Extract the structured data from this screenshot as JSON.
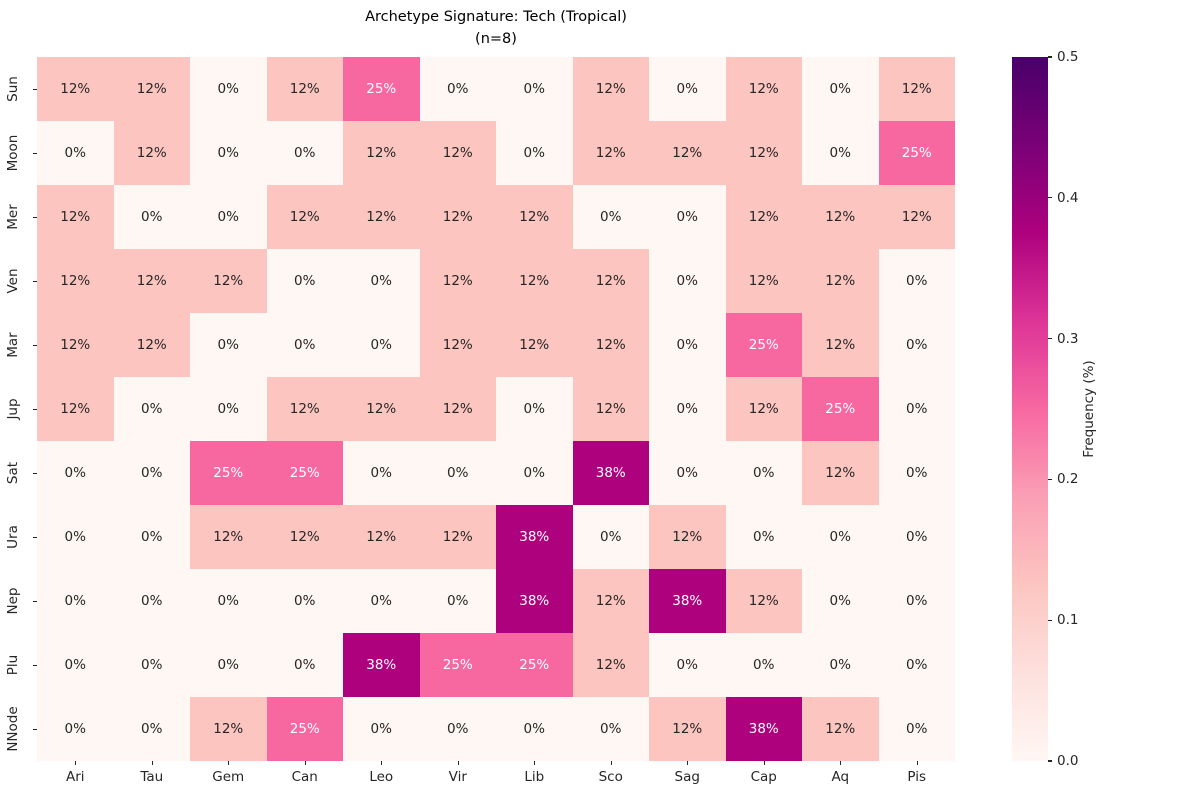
{
  "figure": {
    "title": "Archetype Signature: Tech (Tropical)",
    "subtitle": "(n=8)"
  },
  "chart_data": {
    "type": "heatmap",
    "title": "Archetype Signature: Tech (Tropical)",
    "subtitle": "(n=8)",
    "x_categories": [
      "Ari",
      "Tau",
      "Gem",
      "Can",
      "Leo",
      "Vir",
      "Lib",
      "Sco",
      "Sag",
      "Cap",
      "Aq",
      "Pis"
    ],
    "y_categories": [
      "Sun",
      "Moon",
      "Mer",
      "Ven",
      "Mar",
      "Jup",
      "Sat",
      "Ura",
      "Nep",
      "Plu",
      "NNode"
    ],
    "values": [
      [
        0.125,
        0.125,
        0,
        0.125,
        0.25,
        0,
        0,
        0.125,
        0,
        0.125,
        0,
        0.125
      ],
      [
        0,
        0.125,
        0,
        0,
        0.125,
        0.125,
        0,
        0.125,
        0.125,
        0.125,
        0,
        0.25
      ],
      [
        0.125,
        0,
        0,
        0.125,
        0.125,
        0.125,
        0.125,
        0,
        0,
        0.125,
        0.125,
        0.125
      ],
      [
        0.125,
        0.125,
        0.125,
        0,
        0,
        0.125,
        0.125,
        0.125,
        0,
        0.125,
        0.125,
        0
      ],
      [
        0.125,
        0.125,
        0,
        0,
        0,
        0.125,
        0.125,
        0.125,
        0,
        0.25,
        0.125,
        0
      ],
      [
        0.125,
        0,
        0,
        0.125,
        0.125,
        0.125,
        0,
        0.125,
        0,
        0.125,
        0.25,
        0
      ],
      [
        0,
        0,
        0.25,
        0.25,
        0,
        0,
        0,
        0.375,
        0,
        0,
        0.125,
        0
      ],
      [
        0,
        0,
        0.125,
        0.125,
        0.125,
        0.125,
        0.375,
        0,
        0.125,
        0,
        0,
        0
      ],
      [
        0,
        0,
        0,
        0,
        0,
        0,
        0.375,
        0.125,
        0.375,
        0.125,
        0,
        0
      ],
      [
        0,
        0,
        0,
        0,
        0.375,
        0.25,
        0.25,
        0.125,
        0,
        0,
        0,
        0
      ],
      [
        0,
        0,
        0.125,
        0.25,
        0,
        0,
        0,
        0,
        0.125,
        0.375,
        0.125,
        0
      ]
    ],
    "cell_labels": [
      [
        "12%",
        "12%",
        "0%",
        "12%",
        "25%",
        "0%",
        "0%",
        "12%",
        "0%",
        "12%",
        "0%",
        "12%"
      ],
      [
        "0%",
        "12%",
        "0%",
        "0%",
        "12%",
        "12%",
        "0%",
        "12%",
        "12%",
        "12%",
        "0%",
        "25%"
      ],
      [
        "12%",
        "0%",
        "0%",
        "12%",
        "12%",
        "12%",
        "12%",
        "0%",
        "0%",
        "12%",
        "12%",
        "12%"
      ],
      [
        "12%",
        "12%",
        "12%",
        "0%",
        "0%",
        "12%",
        "12%",
        "12%",
        "0%",
        "12%",
        "12%",
        "0%"
      ],
      [
        "12%",
        "12%",
        "0%",
        "0%",
        "0%",
        "12%",
        "12%",
        "12%",
        "0%",
        "25%",
        "12%",
        "0%"
      ],
      [
        "12%",
        "0%",
        "0%",
        "12%",
        "12%",
        "12%",
        "0%",
        "12%",
        "0%",
        "12%",
        "25%",
        "0%"
      ],
      [
        "0%",
        "0%",
        "25%",
        "25%",
        "0%",
        "0%",
        "0%",
        "38%",
        "0%",
        "0%",
        "12%",
        "0%"
      ],
      [
        "0%",
        "0%",
        "12%",
        "12%",
        "12%",
        "12%",
        "38%",
        "0%",
        "12%",
        "0%",
        "0%",
        "0%"
      ],
      [
        "0%",
        "0%",
        "0%",
        "0%",
        "0%",
        "0%",
        "38%",
        "12%",
        "38%",
        "12%",
        "0%",
        "0%"
      ],
      [
        "0%",
        "0%",
        "0%",
        "0%",
        "38%",
        "25%",
        "25%",
        "12%",
        "0%",
        "0%",
        "0%",
        "0%"
      ],
      [
        "0%",
        "0%",
        "12%",
        "25%",
        "0%",
        "0%",
        "0%",
        "0%",
        "12%",
        "38%",
        "12%",
        "0%"
      ]
    ],
    "colorbar": {
      "label": "Frequency (%)",
      "vmin": 0.0,
      "vmax": 0.5,
      "ticks": [
        {
          "value": 0.0,
          "label": "0.0"
        },
        {
          "value": 0.1,
          "label": "0.1"
        },
        {
          "value": 0.2,
          "label": "0.2"
        },
        {
          "value": 0.3,
          "label": "0.3"
        },
        {
          "value": 0.4,
          "label": "0.4"
        },
        {
          "value": 0.5,
          "label": "0.5"
        }
      ]
    },
    "colormap_stops": [
      "#fff7f3",
      "#fde0dd",
      "#fcc5c0",
      "#fa9fb5",
      "#f768a1",
      "#dd3497",
      "#ae017e",
      "#7a0177",
      "#49006a"
    ],
    "annot_white_threshold": 0.25,
    "text_colors": {
      "dark": "#262626",
      "light": "#ffffff"
    }
  }
}
